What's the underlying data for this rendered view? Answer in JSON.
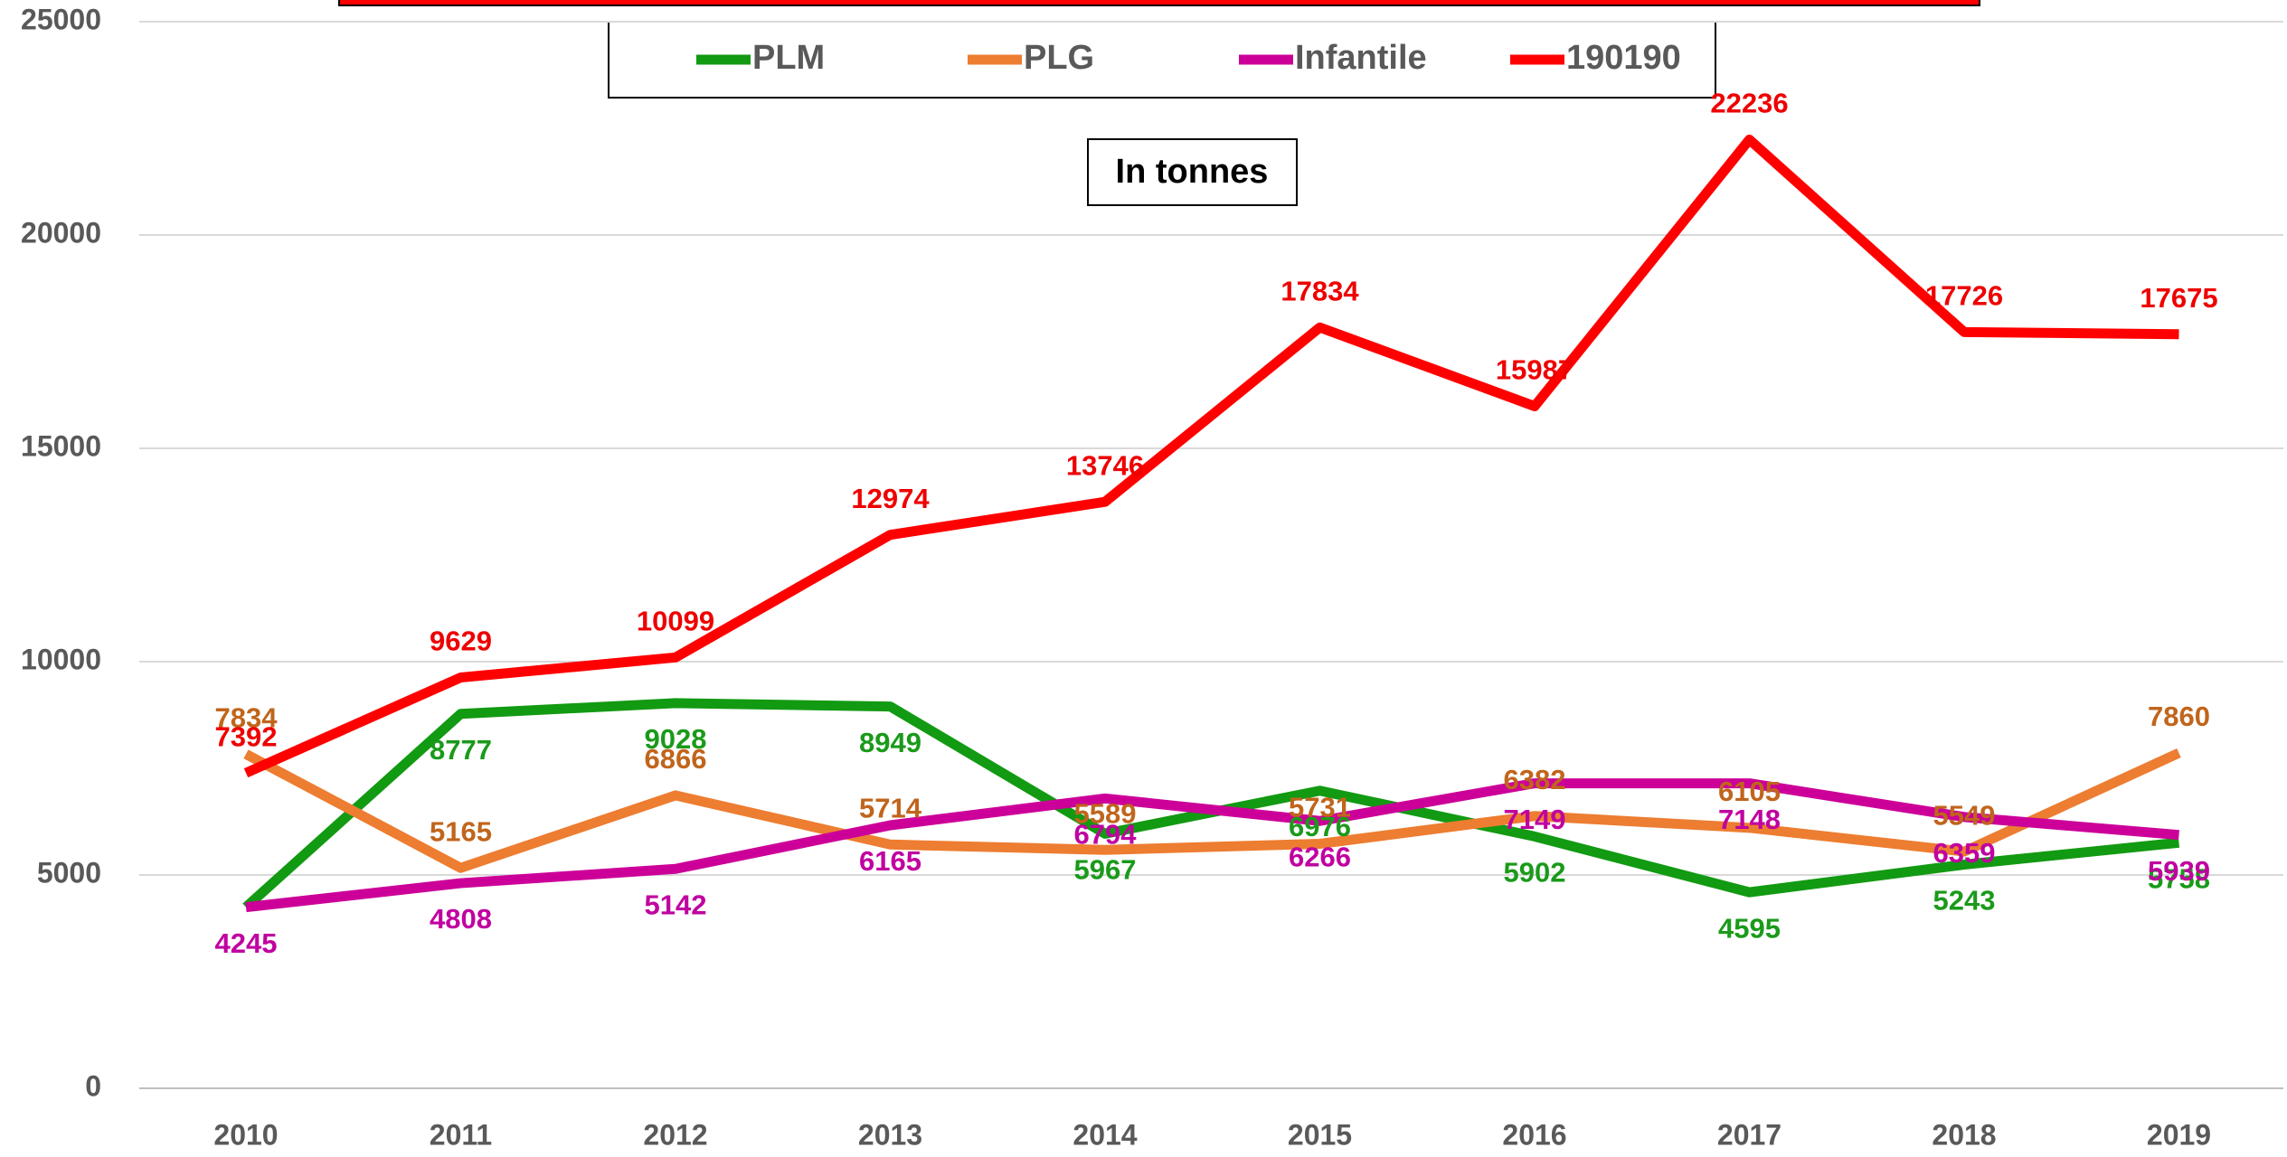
{
  "chart_data": {
    "type": "line",
    "annotation": "In tonnes",
    "categories": [
      "2010",
      "2011",
      "2012",
      "2013",
      "2014",
      "2015",
      "2016",
      "2017",
      "2018",
      "2019"
    ],
    "series": [
      {
        "name": "PLM",
        "color": "#129a12",
        "label_color": "#1a9a1a",
        "values": [
          4245,
          8777,
          9028,
          8949,
          5967,
          6976,
          5902,
          4595,
          5243,
          5758
        ],
        "value_labels": [
          null,
          "8777",
          "9028",
          "8949",
          "5967",
          "6976",
          "5902",
          "4595",
          "5243",
          "5758"
        ]
      },
      {
        "name": "PLG",
        "color": "#ed7d31",
        "label_color": "#c0651c",
        "values": [
          7834,
          5165,
          6866,
          5714,
          5589,
          5731,
          6382,
          6105,
          5549,
          7860
        ]
      },
      {
        "name": "Infantile",
        "color": "#cc0099",
        "label_color": "#c000a0",
        "values": [
          4245,
          4808,
          5142,
          6165,
          6794,
          6266,
          7149,
          7148,
          6359,
          5939
        ]
      },
      {
        "name": "190190",
        "color": "#ff0000",
        "label_color": "#ee0000",
        "values": [
          7392,
          9629,
          10099,
          12974,
          13746,
          17834,
          15987,
          22236,
          17726,
          17675
        ]
      }
    ],
    "ylim": [
      0,
      25000
    ],
    "yticks": [
      0,
      5000,
      10000,
      15000,
      20000,
      25000
    ],
    "grid": true,
    "legend": "top"
  }
}
